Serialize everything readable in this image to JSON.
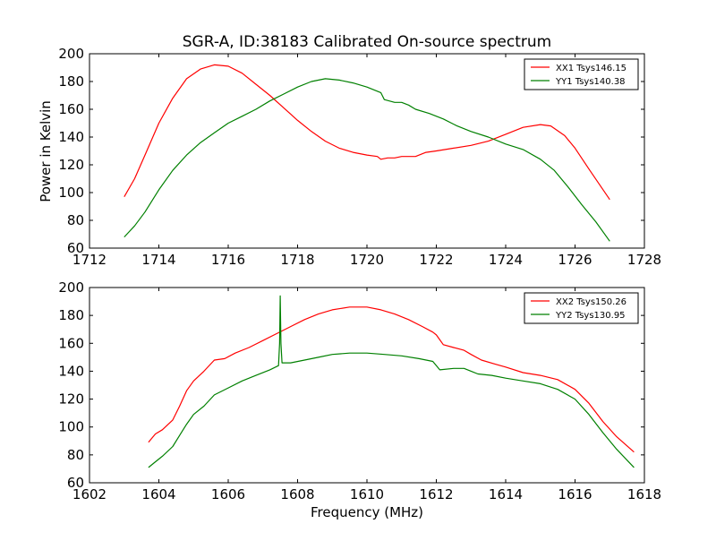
{
  "figure": {
    "title": "SGR-A, ID:38183 Calibrated On-source spectrum",
    "ylabel": "Power in Kelvin",
    "xlabel": "Frequency (MHz)"
  },
  "chart_data": [
    {
      "type": "line",
      "title": "SGR-A, ID:38183 Calibrated On-source spectrum",
      "xlabel": "",
      "ylabel": "Power in Kelvin",
      "xlim": [
        1712,
        1728
      ],
      "ylim": [
        60,
        200
      ],
      "xticks": [
        "1712",
        "1714",
        "1716",
        "1718",
        "1720",
        "1722",
        "1724",
        "1726",
        "1728"
      ],
      "yticks": [
        "60",
        "80",
        "100",
        "120",
        "140",
        "160",
        "180",
        "200"
      ],
      "grid": false,
      "legend_position": "top-right",
      "series": [
        {
          "name": "XX1 Tsys146.15",
          "color": "#ff0000",
          "points": [
            [
              1713.0,
              97
            ],
            [
              1713.3,
              110
            ],
            [
              1713.6,
              127
            ],
            [
              1714.0,
              150
            ],
            [
              1714.4,
              168
            ],
            [
              1714.8,
              182
            ],
            [
              1715.2,
              189
            ],
            [
              1715.6,
              192
            ],
            [
              1716.0,
              191
            ],
            [
              1716.4,
              186
            ],
            [
              1716.8,
              178
            ],
            [
              1717.2,
              170
            ],
            [
              1717.6,
              161
            ],
            [
              1718.0,
              152
            ],
            [
              1718.4,
              144
            ],
            [
              1718.8,
              137
            ],
            [
              1719.2,
              132
            ],
            [
              1719.6,
              129
            ],
            [
              1720.0,
              127
            ],
            [
              1720.3,
              126
            ],
            [
              1720.4,
              124
            ],
            [
              1720.6,
              125
            ],
            [
              1720.8,
              125
            ],
            [
              1721.0,
              126
            ],
            [
              1721.4,
              126
            ],
            [
              1721.7,
              129
            ],
            [
              1722.0,
              130
            ],
            [
              1722.5,
              132
            ],
            [
              1723.0,
              134
            ],
            [
              1723.5,
              137
            ],
            [
              1724.0,
              142
            ],
            [
              1724.5,
              147
            ],
            [
              1725.0,
              149
            ],
            [
              1725.3,
              148
            ],
            [
              1725.7,
              141
            ],
            [
              1726.0,
              132
            ],
            [
              1726.4,
              117
            ],
            [
              1726.7,
              106
            ],
            [
              1727.0,
              95
            ]
          ]
        },
        {
          "name": "YY1 Tsys140.38",
          "color": "#008000",
          "points": [
            [
              1713.0,
              68
            ],
            [
              1713.3,
              76
            ],
            [
              1713.6,
              86
            ],
            [
              1714.0,
              102
            ],
            [
              1714.4,
              116
            ],
            [
              1714.8,
              127
            ],
            [
              1715.2,
              136
            ],
            [
              1715.6,
              143
            ],
            [
              1716.0,
              150
            ],
            [
              1716.4,
              155
            ],
            [
              1716.8,
              160
            ],
            [
              1717.2,
              166
            ],
            [
              1717.6,
              171
            ],
            [
              1718.0,
              176
            ],
            [
              1718.4,
              180
            ],
            [
              1718.8,
              182
            ],
            [
              1719.2,
              181
            ],
            [
              1719.6,
              179
            ],
            [
              1720.0,
              176
            ],
            [
              1720.4,
              172
            ],
            [
              1720.5,
              167
            ],
            [
              1720.8,
              165
            ],
            [
              1721.0,
              165
            ],
            [
              1721.2,
              163
            ],
            [
              1721.4,
              160
            ],
            [
              1721.8,
              157
            ],
            [
              1722.2,
              153
            ],
            [
              1722.6,
              148
            ],
            [
              1723.0,
              144
            ],
            [
              1723.5,
              140
            ],
            [
              1724.0,
              135
            ],
            [
              1724.5,
              131
            ],
            [
              1725.0,
              124
            ],
            [
              1725.4,
              116
            ],
            [
              1725.8,
              104
            ],
            [
              1726.2,
              91
            ],
            [
              1726.6,
              79
            ],
            [
              1727.0,
              65
            ]
          ]
        }
      ]
    },
    {
      "type": "line",
      "title": "",
      "xlabel": "Frequency (MHz)",
      "ylabel": "",
      "xlim": [
        1602,
        1618
      ],
      "ylim": [
        60,
        200
      ],
      "xticks": [
        "1602",
        "1604",
        "1606",
        "1608",
        "1610",
        "1612",
        "1614",
        "1616",
        "1618"
      ],
      "yticks": [
        "60",
        "80",
        "100",
        "120",
        "140",
        "160",
        "180",
        "200"
      ],
      "grid": false,
      "legend_position": "top-right",
      "series": [
        {
          "name": "XX2 Tsys150.26",
          "color": "#ff0000",
          "points": [
            [
              1603.7,
              89
            ],
            [
              1603.9,
              95
            ],
            [
              1604.1,
              98
            ],
            [
              1604.4,
              105
            ],
            [
              1604.6,
              115
            ],
            [
              1604.8,
              126
            ],
            [
              1605.0,
              133
            ],
            [
              1605.3,
              140
            ],
            [
              1605.6,
              148
            ],
            [
              1605.9,
              149
            ],
            [
              1606.2,
              153
            ],
            [
              1606.6,
              157
            ],
            [
              1607.0,
              162
            ],
            [
              1607.4,
              167
            ],
            [
              1607.8,
              172
            ],
            [
              1608.2,
              177
            ],
            [
              1608.6,
              181
            ],
            [
              1609.0,
              184
            ],
            [
              1609.5,
              186
            ],
            [
              1610.0,
              186
            ],
            [
              1610.4,
              184
            ],
            [
              1610.8,
              181
            ],
            [
              1611.2,
              177
            ],
            [
              1611.6,
              172
            ],
            [
              1611.9,
              168
            ],
            [
              1612.0,
              166
            ],
            [
              1612.2,
              159
            ],
            [
              1612.5,
              157
            ],
            [
              1612.8,
              155
            ],
            [
              1613.0,
              152
            ],
            [
              1613.3,
              148
            ],
            [
              1613.7,
              145
            ],
            [
              1614.0,
              143
            ],
            [
              1614.5,
              139
            ],
            [
              1615.0,
              137
            ],
            [
              1615.5,
              134
            ],
            [
              1616.0,
              127
            ],
            [
              1616.4,
              117
            ],
            [
              1616.8,
              104
            ],
            [
              1617.2,
              93
            ],
            [
              1617.7,
              82
            ]
          ]
        },
        {
          "name": "YY2 Tsys130.95",
          "color": "#008000",
          "points": [
            [
              1603.7,
              71
            ],
            [
              1603.9,
              75
            ],
            [
              1604.1,
              79
            ],
            [
              1604.4,
              86
            ],
            [
              1604.6,
              94
            ],
            [
              1604.8,
              102
            ],
            [
              1605.0,
              109
            ],
            [
              1605.3,
              115
            ],
            [
              1605.6,
              123
            ],
            [
              1606.0,
              128
            ],
            [
              1606.4,
              133
            ],
            [
              1606.8,
              137
            ],
            [
              1607.2,
              141
            ],
            [
              1607.45,
              144
            ],
            [
              1607.48,
              160
            ],
            [
              1607.5,
              194
            ],
            [
              1607.52,
              160
            ],
            [
              1607.55,
              146
            ],
            [
              1607.8,
              146
            ],
            [
              1608.2,
              148
            ],
            [
              1608.6,
              150
            ],
            [
              1609.0,
              152
            ],
            [
              1609.5,
              153
            ],
            [
              1610.0,
              153
            ],
            [
              1610.5,
              152
            ],
            [
              1611.0,
              151
            ],
            [
              1611.5,
              149
            ],
            [
              1611.9,
              147
            ],
            [
              1612.1,
              141
            ],
            [
              1612.5,
              142
            ],
            [
              1612.8,
              142
            ],
            [
              1613.0,
              140
            ],
            [
              1613.2,
              138
            ],
            [
              1613.6,
              137
            ],
            [
              1614.0,
              135
            ],
            [
              1614.5,
              133
            ],
            [
              1615.0,
              131
            ],
            [
              1615.5,
              127
            ],
            [
              1616.0,
              120
            ],
            [
              1616.4,
              109
            ],
            [
              1616.8,
              96
            ],
            [
              1617.2,
              84
            ],
            [
              1617.7,
              71
            ]
          ]
        }
      ]
    }
  ]
}
